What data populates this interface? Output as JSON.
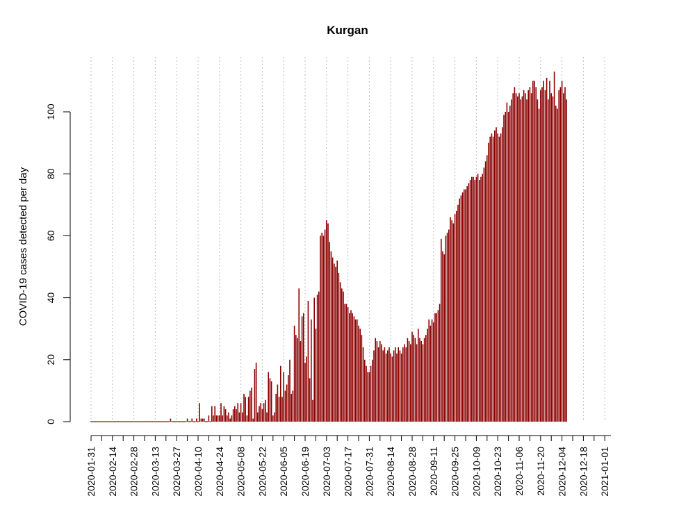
{
  "chart_data": {
    "type": "bar",
    "title": "Kurgan",
    "xlabel": "",
    "ylabel": "COVID-19 cases detected per day",
    "ylim": [
      0,
      110
    ],
    "yticks": [
      0,
      20,
      40,
      60,
      80,
      100
    ],
    "x_start_date": "2020-01-31",
    "x_end_date": "2021-01-05",
    "xticks": [
      "2020-01-31",
      "2020-02-14",
      "2020-02-28",
      "2020-03-13",
      "2020-03-27",
      "2020-04-10",
      "2020-04-24",
      "2020-05-08",
      "2020-05-22",
      "2020-06-05",
      "2020-06-19",
      "2020-07-03",
      "2020-07-17",
      "2020-07-31",
      "2020-08-14",
      "2020-08-28",
      "2020-09-11",
      "2020-09-25",
      "2020-10-09",
      "2020-10-23",
      "2020-11-06",
      "2020-11-20",
      "2020-12-04",
      "2020-12-18",
      "2021-01-01"
    ],
    "grid": "vertical dotted lines at tick dates",
    "bar_color": "#8b0000",
    "grid_color": "#bfbfbf",
    "series": [
      {
        "values": [
          0,
          0,
          0,
          0,
          0,
          0,
          0,
          0,
          0,
          0,
          0,
          0,
          0,
          0,
          0,
          0,
          0,
          0,
          0,
          0,
          0,
          0,
          0,
          0,
          0,
          0,
          0,
          0,
          0,
          0,
          0,
          0,
          0,
          0,
          0,
          0,
          0,
          0,
          0,
          0,
          0,
          0,
          0,
          0,
          0,
          0,
          0,
          0,
          0,
          0,
          0,
          0,
          1,
          0,
          0,
          0,
          0,
          0,
          0,
          0,
          0,
          0,
          0,
          1,
          0,
          0,
          1,
          0,
          0,
          1,
          0,
          6,
          1,
          1,
          1,
          0,
          0,
          2,
          0,
          5,
          2,
          5,
          2,
          2,
          2,
          6,
          2,
          5,
          4,
          2,
          3,
          1,
          2,
          4,
          5,
          4,
          6,
          3,
          6,
          3,
          9,
          8,
          2,
          8,
          10,
          11,
          1,
          17,
          19,
          3,
          5,
          6,
          4,
          6,
          7,
          3,
          16,
          14,
          13,
          2,
          3,
          9,
          12,
          8,
          18,
          8,
          16,
          10,
          12,
          15,
          20,
          9,
          10,
          31,
          28,
          27,
          43,
          26,
          34,
          35,
          19,
          21,
          39,
          14,
          33,
          7,
          40,
          30,
          41,
          42,
          60,
          61,
          60,
          62,
          65,
          64,
          58,
          55,
          53,
          51,
          50,
          52,
          48,
          45,
          43,
          42,
          38,
          38,
          37,
          35,
          36,
          35,
          34,
          33,
          33,
          31,
          30,
          28,
          24,
          20,
          18,
          16,
          16,
          18,
          20,
          23,
          27,
          26,
          24,
          26,
          25,
          23,
          24,
          22,
          23,
          24,
          22,
          21,
          23,
          24,
          22,
          24,
          23,
          22,
          24,
          25,
          24,
          27,
          26,
          25,
          29,
          28,
          27,
          25,
          30,
          27,
          26,
          25,
          27,
          28,
          30,
          33,
          31,
          33,
          32,
          35,
          35,
          36,
          38,
          59,
          55,
          54,
          60,
          61,
          62,
          66,
          65,
          64,
          67,
          68,
          70,
          72,
          73,
          74,
          75,
          75,
          76,
          77,
          78,
          79,
          79,
          78,
          79,
          80,
          78,
          79,
          80,
          82,
          84,
          86,
          90,
          92,
          93,
          92,
          94,
          95,
          93,
          92,
          93,
          95,
          99,
          100,
          103,
          100,
          102,
          104,
          106,
          108,
          106,
          105,
          106,
          104,
          105,
          107,
          106,
          104,
          107,
          108,
          106,
          110,
          110,
          108,
          104,
          101,
          107,
          108,
          110,
          107,
          111,
          104,
          110,
          106,
          105,
          113,
          102,
          101,
          107,
          108,
          110,
          106,
          108,
          104
        ]
      }
    ]
  }
}
